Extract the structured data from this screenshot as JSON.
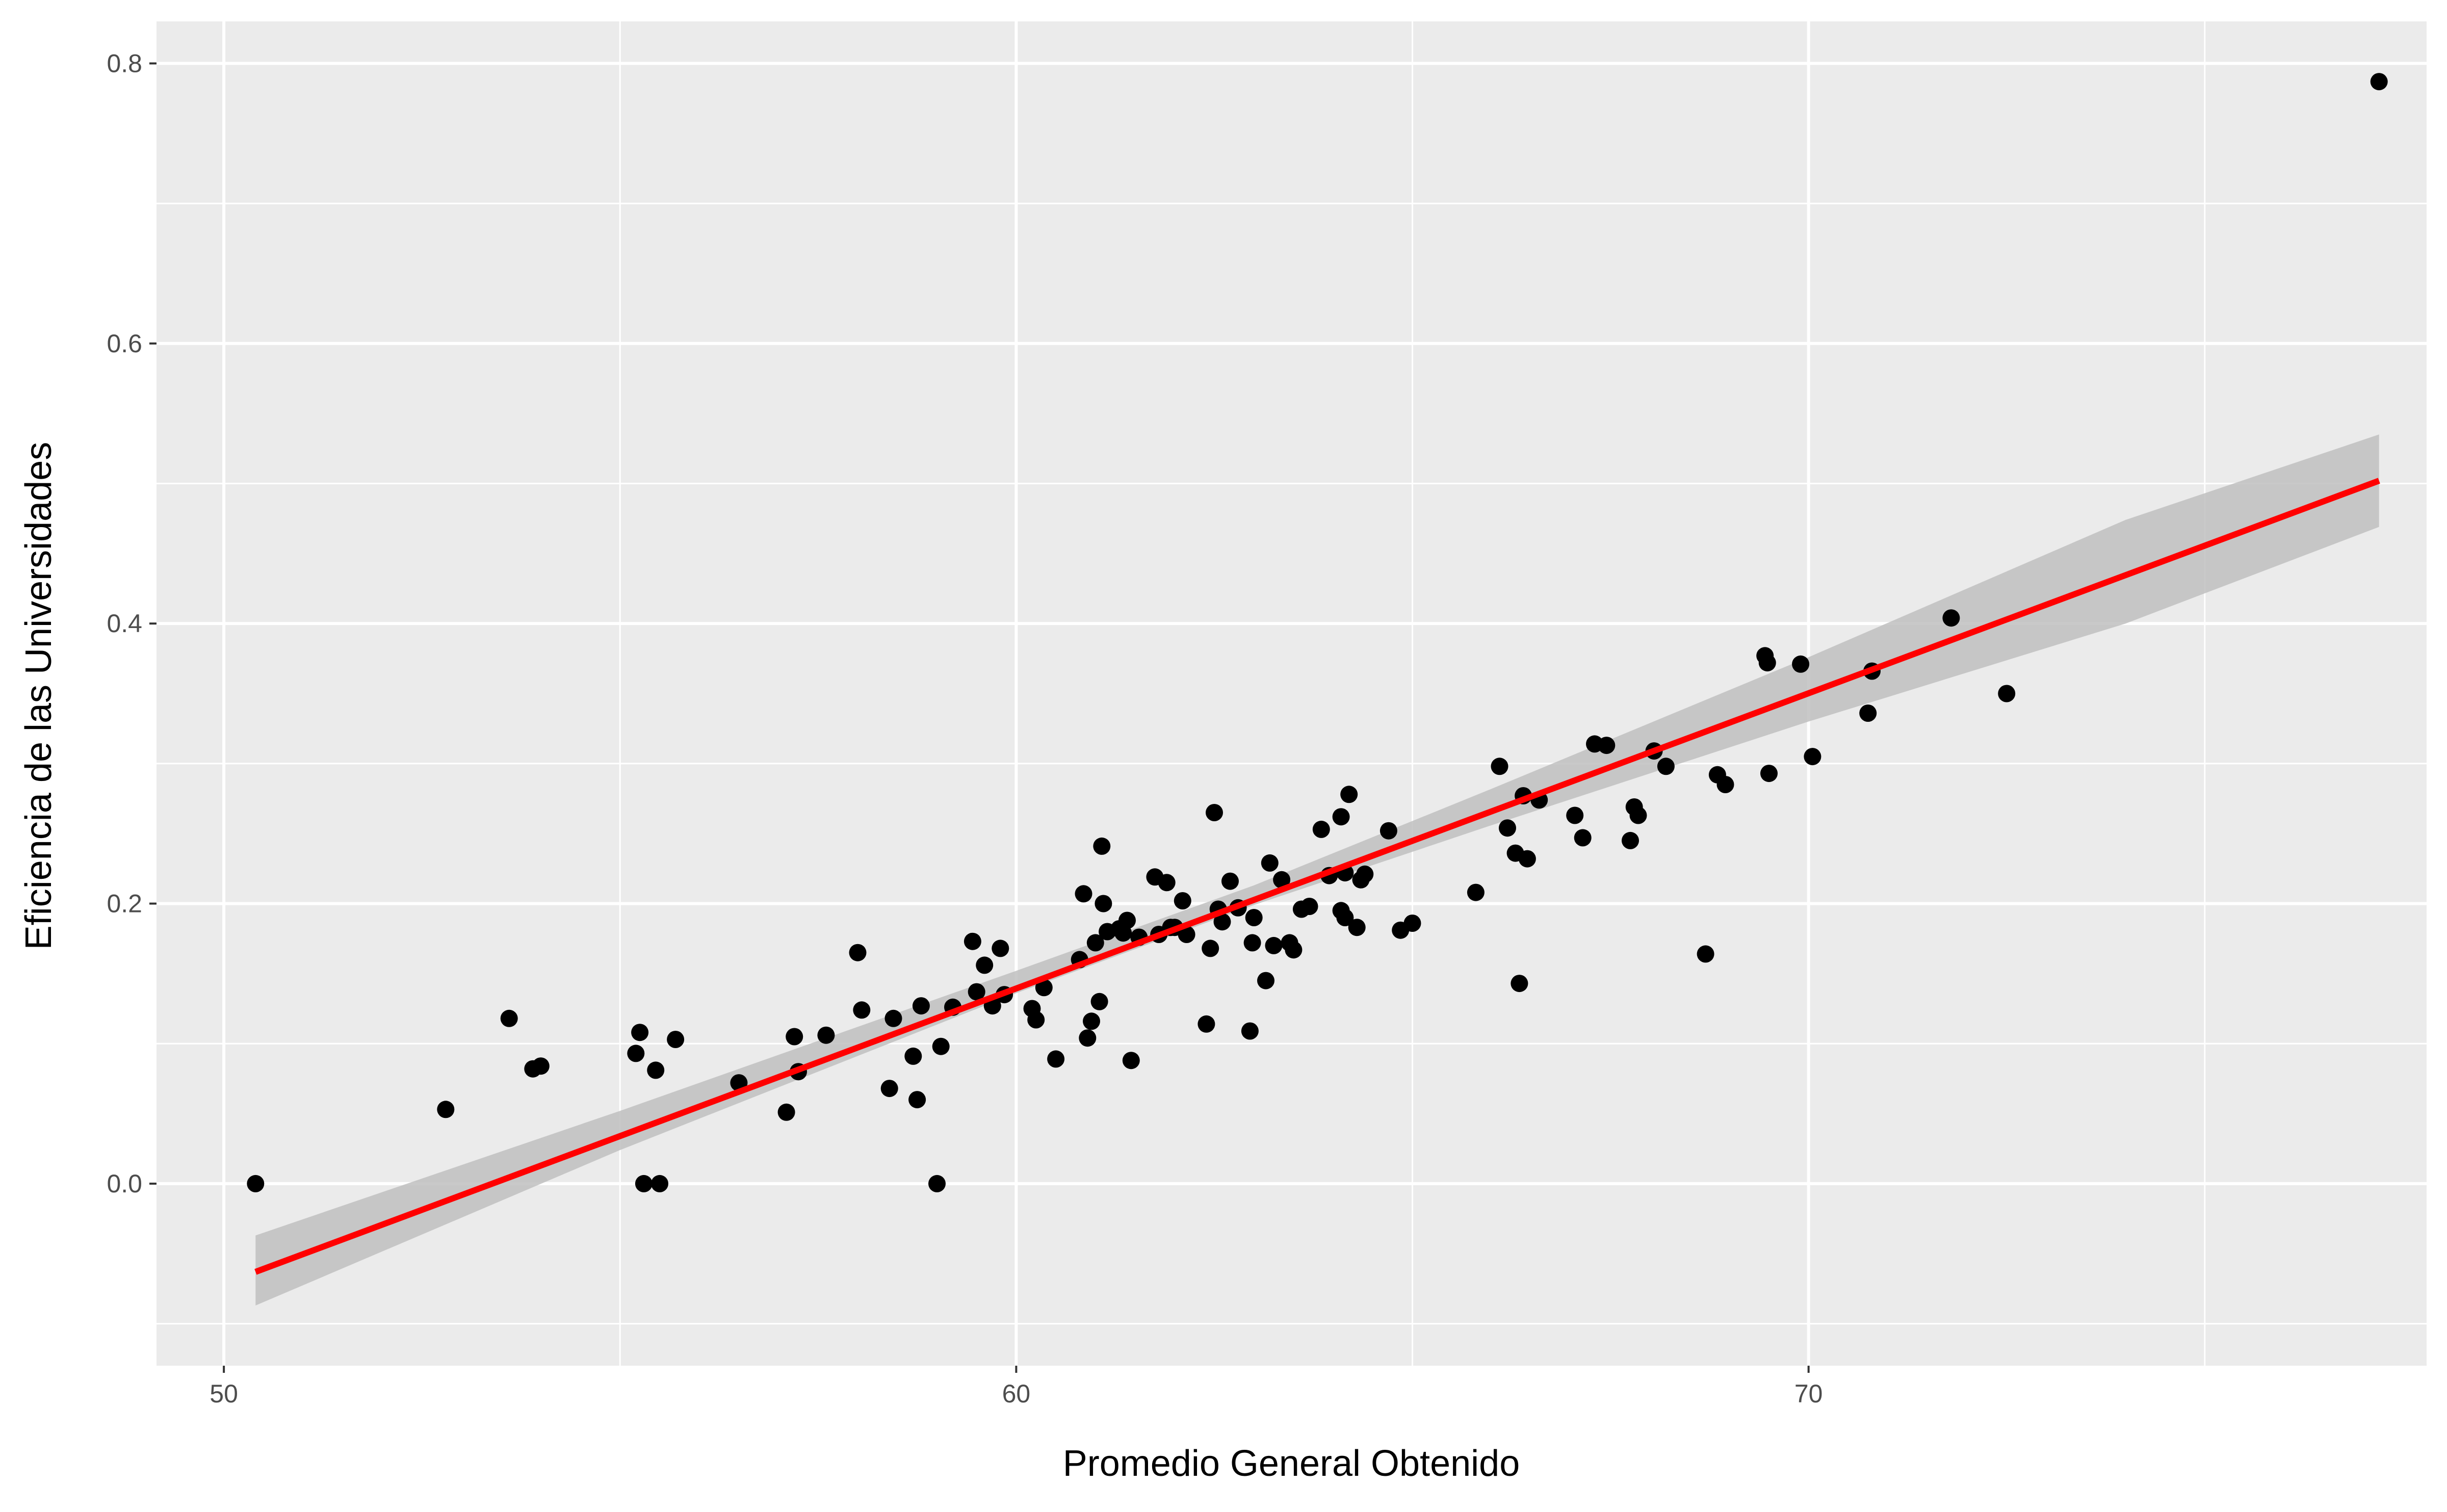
{
  "chart_data": {
    "type": "scatter",
    "title": "",
    "xlabel": "Promedio General Obtenido",
    "ylabel": "Eficiencia de las Universidades",
    "xlim": [
      49.15,
      77.8
    ],
    "ylim": [
      -0.13,
      0.83
    ],
    "x_ticks": [
      50,
      60,
      70
    ],
    "x_tick_labels": [
      "50",
      "60",
      "70"
    ],
    "y_ticks": [
      0.0,
      0.2,
      0.4,
      0.6,
      0.8
    ],
    "y_tick_labels": [
      "0.0",
      "0.2",
      "0.4",
      "0.6",
      "0.8"
    ],
    "grid": true,
    "legend": "none",
    "colors": {
      "panel": "#ebebeb",
      "grid": "#ffffff",
      "points": "#000000",
      "fit_line": "#ff0000",
      "confidence_band": "#bfbfbf"
    },
    "series": [
      {
        "points": [
          [
            50.4,
            0.0
          ],
          [
            52.8,
            0.053
          ],
          [
            53.6,
            0.118
          ],
          [
            53.9,
            0.082
          ],
          [
            54.0,
            0.084
          ],
          [
            55.2,
            0.093
          ],
          [
            55.25,
            0.108
          ],
          [
            55.3,
            0.0
          ],
          [
            55.45,
            0.081
          ],
          [
            55.5,
            0.0
          ],
          [
            55.7,
            0.103
          ],
          [
            56.5,
            0.072
          ],
          [
            57.1,
            0.051
          ],
          [
            57.2,
            0.105
          ],
          [
            57.25,
            0.08
          ],
          [
            57.6,
            0.106
          ],
          [
            58.0,
            0.165
          ],
          [
            58.05,
            0.124
          ],
          [
            58.4,
            0.068
          ],
          [
            58.45,
            0.118
          ],
          [
            58.7,
            0.091
          ],
          [
            58.75,
            0.06
          ],
          [
            58.8,
            0.127
          ],
          [
            59.0,
            0.0
          ],
          [
            59.05,
            0.098
          ],
          [
            59.2,
            0.126
          ],
          [
            59.45,
            0.173
          ],
          [
            59.5,
            0.137
          ],
          [
            59.6,
            0.156
          ],
          [
            59.7,
            0.127
          ],
          [
            59.8,
            0.168
          ],
          [
            59.85,
            0.135
          ],
          [
            60.2,
            0.125
          ],
          [
            60.25,
            0.117
          ],
          [
            60.35,
            0.14
          ],
          [
            60.5,
            0.089
          ],
          [
            60.8,
            0.16
          ],
          [
            60.85,
            0.207
          ],
          [
            60.9,
            0.104
          ],
          [
            60.95,
            0.116
          ],
          [
            61.0,
            0.172
          ],
          [
            61.05,
            0.13
          ],
          [
            61.08,
            0.241
          ],
          [
            61.1,
            0.2
          ],
          [
            61.15,
            0.18
          ],
          [
            61.3,
            0.182
          ],
          [
            61.35,
            0.179
          ],
          [
            61.4,
            0.188
          ],
          [
            61.45,
            0.088
          ],
          [
            61.55,
            0.176
          ],
          [
            61.75,
            0.219
          ],
          [
            61.8,
            0.178
          ],
          [
            61.9,
            0.215
          ],
          [
            61.95,
            0.183
          ],
          [
            62.0,
            0.183
          ],
          [
            62.1,
            0.202
          ],
          [
            62.15,
            0.178
          ],
          [
            62.4,
            0.114
          ],
          [
            62.45,
            0.168
          ],
          [
            62.5,
            0.265
          ],
          [
            62.55,
            0.196
          ],
          [
            62.6,
            0.187
          ],
          [
            62.7,
            0.216
          ],
          [
            62.8,
            0.197
          ],
          [
            62.95,
            0.109
          ],
          [
            62.98,
            0.172
          ],
          [
            63.0,
            0.19
          ],
          [
            63.15,
            0.145
          ],
          [
            63.2,
            0.229
          ],
          [
            63.25,
            0.17
          ],
          [
            63.35,
            0.217
          ],
          [
            63.45,
            0.172
          ],
          [
            63.5,
            0.167
          ],
          [
            63.6,
            0.196
          ],
          [
            63.7,
            0.198
          ],
          [
            63.85,
            0.253
          ],
          [
            63.95,
            0.22
          ],
          [
            64.1,
            0.262
          ],
          [
            64.15,
            0.222
          ],
          [
            64.1,
            0.195
          ],
          [
            64.15,
            0.19
          ],
          [
            64.2,
            0.278
          ],
          [
            64.3,
            0.183
          ],
          [
            64.35,
            0.217
          ],
          [
            64.4,
            0.221
          ],
          [
            64.7,
            0.252
          ],
          [
            64.85,
            0.181
          ],
          [
            65.0,
            0.186
          ],
          [
            65.8,
            0.208
          ],
          [
            66.1,
            0.298
          ],
          [
            66.2,
            0.254
          ],
          [
            66.3,
            0.236
          ],
          [
            66.35,
            0.143
          ],
          [
            66.4,
            0.277
          ],
          [
            66.45,
            0.232
          ],
          [
            66.6,
            0.274
          ],
          [
            67.05,
            0.263
          ],
          [
            67.15,
            0.247
          ],
          [
            67.3,
            0.314
          ],
          [
            67.45,
            0.313
          ],
          [
            67.75,
            0.245
          ],
          [
            67.8,
            0.269
          ],
          [
            67.85,
            0.263
          ],
          [
            68.05,
            0.309
          ],
          [
            68.2,
            0.298
          ],
          [
            68.7,
            0.164
          ],
          [
            68.85,
            0.292
          ],
          [
            68.95,
            0.285
          ],
          [
            69.45,
            0.377
          ],
          [
            69.48,
            0.372
          ],
          [
            69.5,
            0.293
          ],
          [
            69.9,
            0.371
          ],
          [
            70.05,
            0.305
          ],
          [
            70.75,
            0.336
          ],
          [
            70.8,
            0.366
          ],
          [
            71.8,
            0.404
          ],
          [
            72.5,
            0.35
          ],
          [
            77.2,
            0.787
          ]
        ]
      }
    ],
    "fit": {
      "method": "linear",
      "line": [
        [
          50.4,
          -0.063
        ],
        [
          77.2,
          0.502
        ]
      ],
      "band": [
        [
          50.4,
          -0.087,
          -0.037
        ],
        [
          55.0,
          0.024,
          0.052
        ],
        [
          60.0,
          0.136,
          0.152
        ],
        [
          63.0,
          0.199,
          0.213
        ],
        [
          66.0,
          0.256,
          0.282
        ],
        [
          70.0,
          0.33,
          0.376
        ],
        [
          74.0,
          0.4,
          0.474
        ],
        [
          77.2,
          0.469,
          0.535
        ]
      ]
    }
  }
}
